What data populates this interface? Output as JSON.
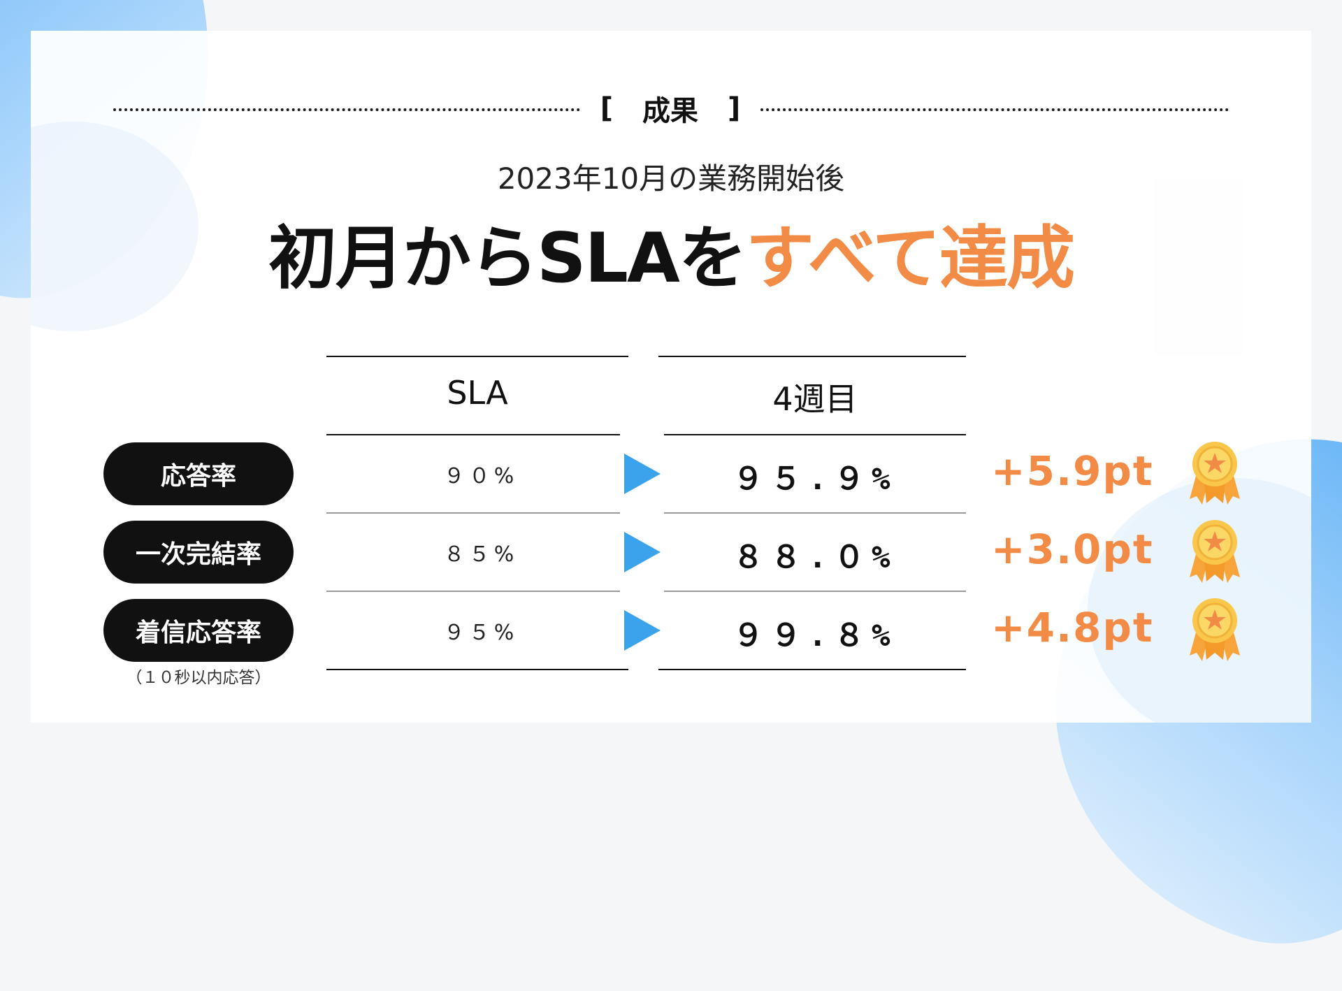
{
  "section_label": {
    "open": "[",
    "text": "成果",
    "close": "]"
  },
  "subtitle": "2023年10月の業務開始後",
  "headline": {
    "prefix": "初月からSLAを",
    "highlight": "すべて達成"
  },
  "table": {
    "headers": {
      "sla": "SLA",
      "week": "4週目"
    },
    "rows": [
      {
        "label": "応答率",
        "sla": "９０%",
        "week": "９５.９%",
        "gain": "+5.9pt"
      },
      {
        "label": "一次完結率",
        "sla": "８５%",
        "week": "８８.０%",
        "gain": "+3.0pt"
      },
      {
        "label": "着信応答率",
        "note": "（１０秒以内応答）",
        "sla": "９５%",
        "week": "９９.８%",
        "gain": "+4.8pt"
      }
    ]
  },
  "icons": {
    "arrow": "play-arrow-icon",
    "medal": "award-medal-icon"
  },
  "colors": {
    "accent_orange": "#f28b46",
    "arrow_blue": "#3aa3ec",
    "pill_black": "#111111"
  }
}
